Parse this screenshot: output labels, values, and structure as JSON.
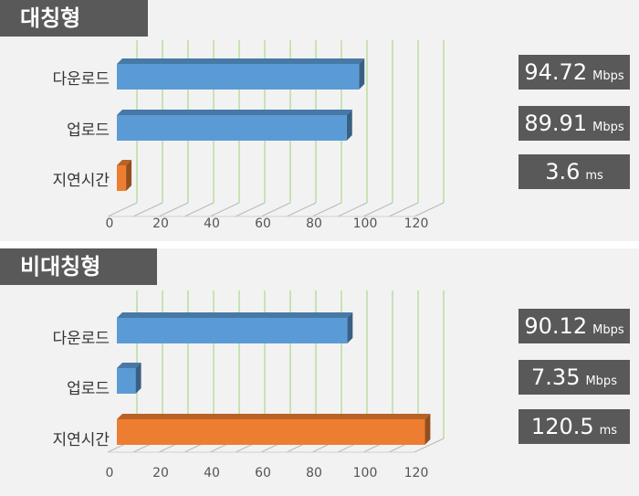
{
  "chart_data": [
    {
      "type": "bar",
      "orientation": "horizontal",
      "title": "대칭형",
      "categories": [
        "다운로드",
        "업로드",
        "지연시간"
      ],
      "values": [
        94.72,
        89.91,
        3.6
      ],
      "value_labels": [
        "94.72",
        "89.91",
        "3.6"
      ],
      "units": [
        "Mbps",
        "Mbps",
        "ms"
      ],
      "colors": [
        "#5b9bd5",
        "#5b9bd5",
        "#ed7d31"
      ],
      "xlim": [
        0,
        120
      ],
      "xticks": [
        "0",
        "20",
        "40",
        "60",
        "80",
        "100",
        "120"
      ],
      "grid": true
    },
    {
      "type": "bar",
      "orientation": "horizontal",
      "title": "비대칭형",
      "categories": [
        "다운로드",
        "업로드",
        "지연시간"
      ],
      "values": [
        90.12,
        7.35,
        120.5
      ],
      "value_labels": [
        "90.12",
        "7.35",
        "120.5"
      ],
      "units": [
        "Mbps",
        "Mbps",
        "ms"
      ],
      "colors": [
        "#5b9bd5",
        "#5b9bd5",
        "#ed7d31"
      ],
      "xlim": [
        0,
        120
      ],
      "xticks": [
        "0",
        "20",
        "40",
        "60",
        "80",
        "100",
        "120"
      ],
      "grid": true
    }
  ]
}
